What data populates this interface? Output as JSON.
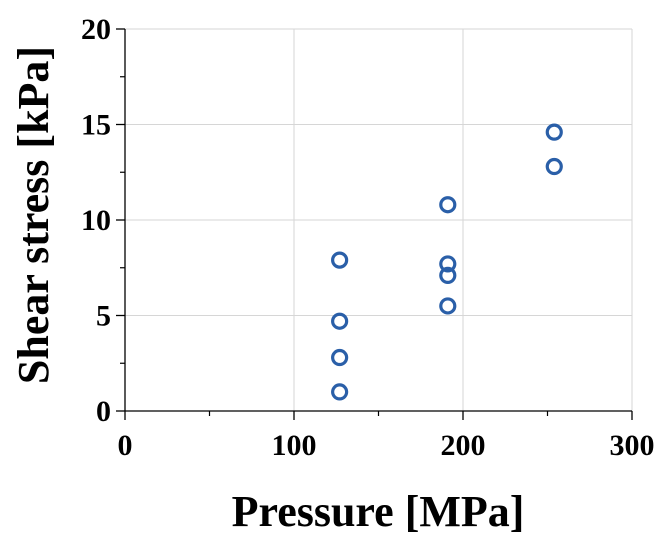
{
  "chart_data": {
    "type": "scatter",
    "xlabel": "Pressure [MPa]",
    "ylabel": "Shear stress [kPa]",
    "xlim": [
      0,
      300
    ],
    "ylim": [
      0,
      20
    ],
    "xticks": [
      0,
      100,
      200,
      300
    ],
    "yticks": [
      0,
      5,
      10,
      15,
      20
    ],
    "xtick_labels": [
      "0",
      "100",
      "200",
      "300"
    ],
    "ytick_labels": [
      "0",
      "5",
      "10",
      "15",
      "20"
    ],
    "grid": true,
    "marker": "open-circle",
    "marker_color": "#2a5fa8",
    "series": [
      {
        "points": [
          {
            "x": 127,
            "y": 7.9
          },
          {
            "x": 127,
            "y": 4.7
          },
          {
            "x": 127,
            "y": 2.8
          },
          {
            "x": 127,
            "y": 1.0
          },
          {
            "x": 191,
            "y": 10.8
          },
          {
            "x": 191,
            "y": 7.7
          },
          {
            "x": 191,
            "y": 7.1
          },
          {
            "x": 191,
            "y": 5.5
          },
          {
            "x": 254,
            "y": 14.6
          },
          {
            "x": 254,
            "y": 12.8
          }
        ]
      }
    ]
  }
}
